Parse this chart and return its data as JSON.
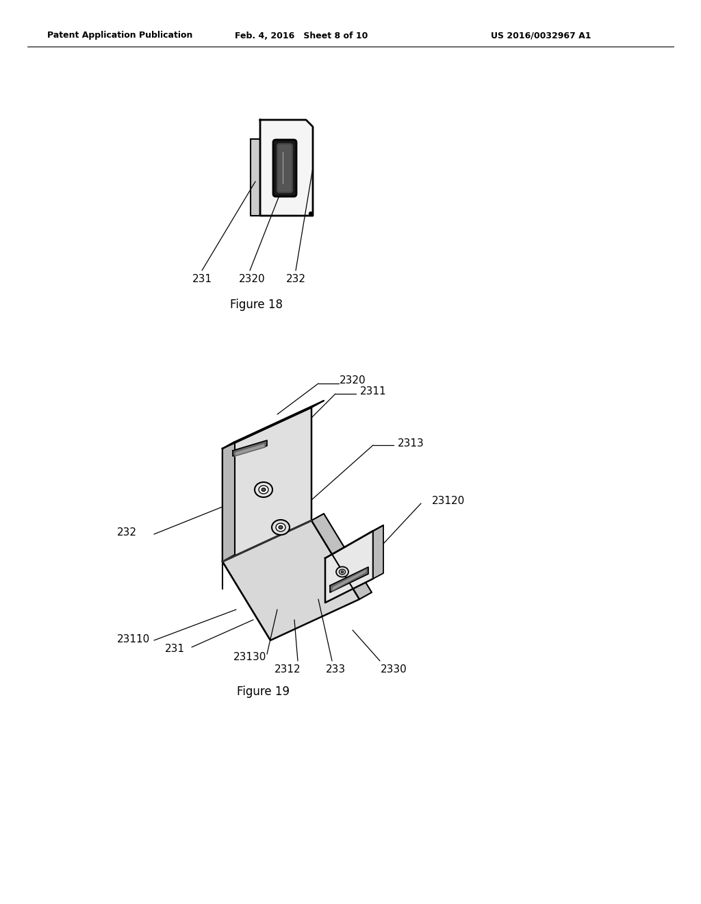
{
  "background_color": "#ffffff",
  "header_left": "Patent Application Publication",
  "header_center": "Feb. 4, 2016   Sheet 8 of 10",
  "header_right": "US 2016/0032967 A1",
  "fig18_caption": "Figure 18",
  "fig19_caption": "Figure 19",
  "fig18_labels": [
    "231",
    "2320",
    "232"
  ],
  "fig19_labels": [
    "2320",
    "2311",
    "2313",
    "23120",
    "232",
    "23110",
    "231",
    "23130",
    "2312",
    "233",
    "2330"
  ]
}
